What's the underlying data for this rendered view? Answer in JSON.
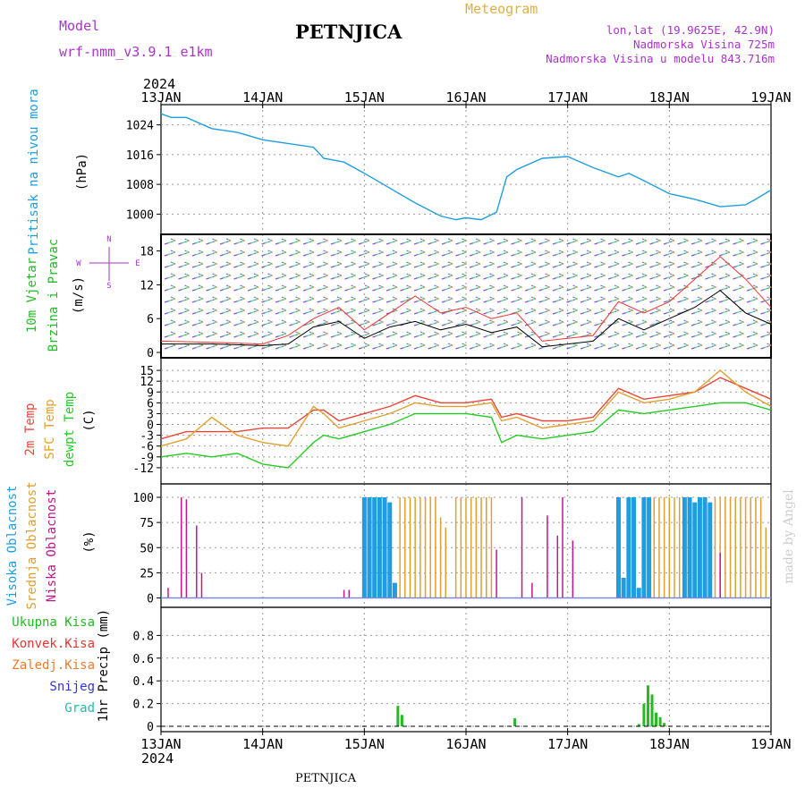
{
  "header": {
    "model_label": "Model",
    "model_name": "wrf-nmm_v3.9.1 e1km",
    "station": "PETNJICA",
    "product": "Meteogram",
    "coords": "lon,lat (19.9625E, 42.9N)",
    "elevation": "Nadmorska Visina 725m",
    "model_elevation": "Nadmorska Visina u modelu 843.716m",
    "footer_station": "PETNJICA",
    "watermark": "made by Angel"
  },
  "time_axis": {
    "year": "2024",
    "ticks": [
      "13JAN",
      "14JAN",
      "15JAN",
      "16JAN",
      "17JAN",
      "18JAN",
      "19JAN"
    ]
  },
  "colors": {
    "pressure": "#1e9ee0",
    "wind_label": "#22bb22",
    "wind_compass": "#aa33cc",
    "temp_2m": "#e8473a",
    "temp_sfc": "#e0a030",
    "dewpoint": "#22cc22",
    "cloud_high": "#1e9ee0",
    "cloud_mid": "#e0a030",
    "cloud_low": "#c2188c",
    "precip_total": "#22bb22",
    "precip_conv": "#e33",
    "precip_frozen": "#f07a2a",
    "snow": "#3333dd",
    "graupel": "#22bbaa",
    "header_purple": "#aa33cc",
    "header_gold": "#e0b040"
  },
  "chart_data": [
    {
      "type": "line",
      "id": "pressure",
      "ylabel_lines": [
        "Pritisak na nivou mora",
        "(hPa)"
      ],
      "ylim": [
        996,
        1028
      ],
      "yticks": [
        "1000",
        "1008",
        "1016",
        "1024"
      ],
      "x": [
        0,
        0.1,
        0.25,
        0.5,
        0.75,
        1,
        1.25,
        1.5,
        1.6,
        1.8,
        2,
        2.25,
        2.5,
        2.75,
        2.9,
        3.0,
        3.15,
        3.3,
        3.4,
        3.5,
        3.75,
        4,
        4.25,
        4.5,
        4.6,
        4.75,
        5,
        5.25,
        5.5,
        5.75,
        5.85,
        6
      ],
      "series": [
        {
          "values": [
            1027,
            1026,
            1026,
            1023,
            1022,
            1020,
            1019,
            1018,
            1015,
            1014,
            1011,
            1007,
            1003,
            999.5,
            998.5,
            999,
            998.5,
            1000.5,
            1010,
            1012,
            1015,
            1015.5,
            1012.5,
            1010,
            1011,
            1009,
            1005.5,
            1004,
            1002,
            1002.5,
            1004,
            1006.5
          ]
        }
      ]
    },
    {
      "type": "line",
      "id": "wind",
      "ylabel_lines": [
        "10m Vjetar",
        "Brzina i Pravac",
        "(m/s)"
      ],
      "compass": [
        "N",
        "W",
        "E",
        "S"
      ],
      "ylim": [
        0,
        20
      ],
      "yticks": [
        "0",
        "6",
        "12",
        "18"
      ],
      "x": [
        0,
        0.5,
        1,
        1.25,
        1.5,
        1.75,
        2,
        2.25,
        2.5,
        2.75,
        3,
        3.25,
        3.5,
        3.75,
        4,
        4.25,
        4.5,
        4.75,
        5,
        5.25,
        5.5,
        5.75,
        6
      ],
      "series": [
        {
          "values": [
            1.5,
            1.5,
            1.2,
            1.5,
            4.5,
            5.5,
            2.5,
            4.5,
            5.5,
            4,
            5,
            3.5,
            4.5,
            1,
            1.5,
            2,
            6,
            4,
            6,
            8,
            11,
            7,
            5
          ]
        },
        {
          "values": [
            2,
            1.8,
            1.5,
            3,
            6,
            8,
            4,
            7,
            10,
            7,
            8,
            6,
            7,
            2,
            2.5,
            3,
            9,
            7,
            9,
            13,
            17,
            13,
            8
          ]
        }
      ]
    },
    {
      "type": "line",
      "id": "temperature",
      "ylabel_lines": [
        "2m Temp",
        "SFC Temp",
        "dewpt Temp",
        "(C)"
      ],
      "ylim": [
        -15,
        17
      ],
      "yticks": [
        "15",
        "12",
        "9",
        "6",
        "3",
        "0",
        "-3",
        "-6",
        "-9",
        "-12"
      ],
      "x": [
        0,
        0.25,
        0.5,
        0.75,
        1,
        1.25,
        1.5,
        1.6,
        1.75,
        2,
        2.25,
        2.5,
        2.75,
        3,
        3.25,
        3.35,
        3.5,
        3.75,
        4,
        4.25,
        4.5,
        4.75,
        5,
        5.25,
        5.5,
        5.75,
        6
      ],
      "series": [
        {
          "name": "2m Temp",
          "values": [
            -4,
            -2,
            -2,
            -2,
            -1,
            -1,
            4,
            4,
            1,
            3,
            5,
            8,
            6,
            6,
            7,
            2,
            3,
            1,
            1,
            2,
            10,
            7,
            8,
            9,
            13,
            10,
            7
          ]
        },
        {
          "name": "SFC Temp",
          "values": [
            -6,
            -4,
            2,
            -3,
            -5,
            -6,
            5,
            3,
            -1,
            1,
            3,
            6,
            5,
            5,
            6,
            1,
            2,
            -1,
            0,
            1,
            9,
            6,
            7,
            9,
            15,
            9,
            5
          ]
        },
        {
          "name": "dewpt Temp",
          "values": [
            -9,
            -8,
            -9,
            -8,
            -11,
            -12,
            -5,
            -3,
            -4,
            -2,
            0,
            3,
            3,
            3,
            2,
            -5,
            -3,
            -4,
            -3,
            -2,
            4,
            3,
            4,
            5,
            6,
            6,
            4
          ]
        }
      ]
    },
    {
      "type": "bar",
      "id": "clouds",
      "ylabel_lines": [
        "Visoka Oblacnost",
        "Srednja Oblacnost",
        "Niska Oblacnost",
        "(%)"
      ],
      "ylim": [
        0,
        100
      ],
      "yticks": [
        "0",
        "25",
        "50",
        "75",
        "100"
      ],
      "series": [
        {
          "name": "Visoka Oblacnost",
          "bars": [
            [
              2.0,
              100
            ],
            [
              2.05,
              100
            ],
            [
              2.1,
              100
            ],
            [
              2.15,
              100
            ],
            [
              2.2,
              100
            ],
            [
              2.25,
              95
            ],
            [
              2.3,
              15
            ],
            [
              4.5,
              100
            ],
            [
              4.55,
              20
            ],
            [
              4.6,
              100
            ],
            [
              4.65,
              100
            ],
            [
              4.7,
              10
            ],
            [
              4.75,
              100
            ],
            [
              4.8,
              100
            ],
            [
              5.15,
              100
            ],
            [
              5.2,
              100
            ],
            [
              5.25,
              95
            ],
            [
              5.3,
              100
            ],
            [
              5.35,
              100
            ],
            [
              5.4,
              95
            ]
          ]
        },
        {
          "name": "Srednja Oblacnost",
          "bars": [
            [
              2.35,
              100
            ],
            [
              2.4,
              100
            ],
            [
              2.45,
              100
            ],
            [
              2.5,
              100
            ],
            [
              2.55,
              100
            ],
            [
              2.6,
              100
            ],
            [
              2.65,
              100
            ],
            [
              2.7,
              100
            ],
            [
              2.75,
              80
            ],
            [
              2.8,
              70
            ],
            [
              2.9,
              100
            ],
            [
              2.95,
              100
            ],
            [
              3.0,
              100
            ],
            [
              3.05,
              100
            ],
            [
              3.1,
              100
            ],
            [
              3.15,
              100
            ],
            [
              3.2,
              100
            ],
            [
              3.25,
              100
            ],
            [
              4.85,
              100
            ],
            [
              4.9,
              100
            ],
            [
              4.95,
              100
            ],
            [
              5.0,
              100
            ],
            [
              5.05,
              100
            ],
            [
              5.1,
              100
            ],
            [
              5.45,
              100
            ],
            [
              5.5,
              100
            ],
            [
              5.55,
              100
            ],
            [
              5.6,
              100
            ],
            [
              5.65,
              100
            ],
            [
              5.7,
              100
            ],
            [
              5.75,
              100
            ],
            [
              5.8,
              100
            ],
            [
              5.85,
              100
            ],
            [
              5.9,
              100
            ],
            [
              5.95,
              70
            ]
          ]
        },
        {
          "name": "Niska Oblacnost",
          "bars": [
            [
              0.07,
              10
            ],
            [
              0.2,
              100
            ],
            [
              0.25,
              98
            ],
            [
              0.35,
              72
            ],
            [
              0.4,
              25
            ],
            [
              1.8,
              8
            ],
            [
              1.85,
              8
            ],
            [
              3.3,
              48
            ],
            [
              3.55,
              100
            ],
            [
              3.65,
              15
            ],
            [
              3.8,
              82
            ],
            [
              3.9,
              62
            ],
            [
              3.95,
              100
            ],
            [
              4.05,
              57
            ],
            [
              5.5,
              45
            ]
          ]
        }
      ]
    },
    {
      "type": "bar",
      "id": "precipitation",
      "ylabel_lines": [
        "1hr Precip (mm)"
      ],
      "legend": [
        "Ukupna Kisa",
        "Konvek.Kisa",
        "Zaledj.Kisa",
        "Snijeg",
        "Grad"
      ],
      "ylim": [
        0,
        1.0
      ],
      "yticks": [
        "0",
        "0.2",
        "0.4",
        "0.6",
        "0.8"
      ],
      "series": [
        {
          "name": "Ukupna Kisa",
          "bars": [
            [
              2.33,
              0.18
            ],
            [
              2.37,
              0.1
            ],
            [
              3.48,
              0.07
            ],
            [
              4.7,
              0.02
            ],
            [
              4.75,
              0.2
            ],
            [
              4.79,
              0.36
            ],
            [
              4.83,
              0.28
            ],
            [
              4.87,
              0.12
            ],
            [
              4.91,
              0.08
            ],
            [
              4.95,
              0.03
            ]
          ]
        }
      ]
    }
  ]
}
